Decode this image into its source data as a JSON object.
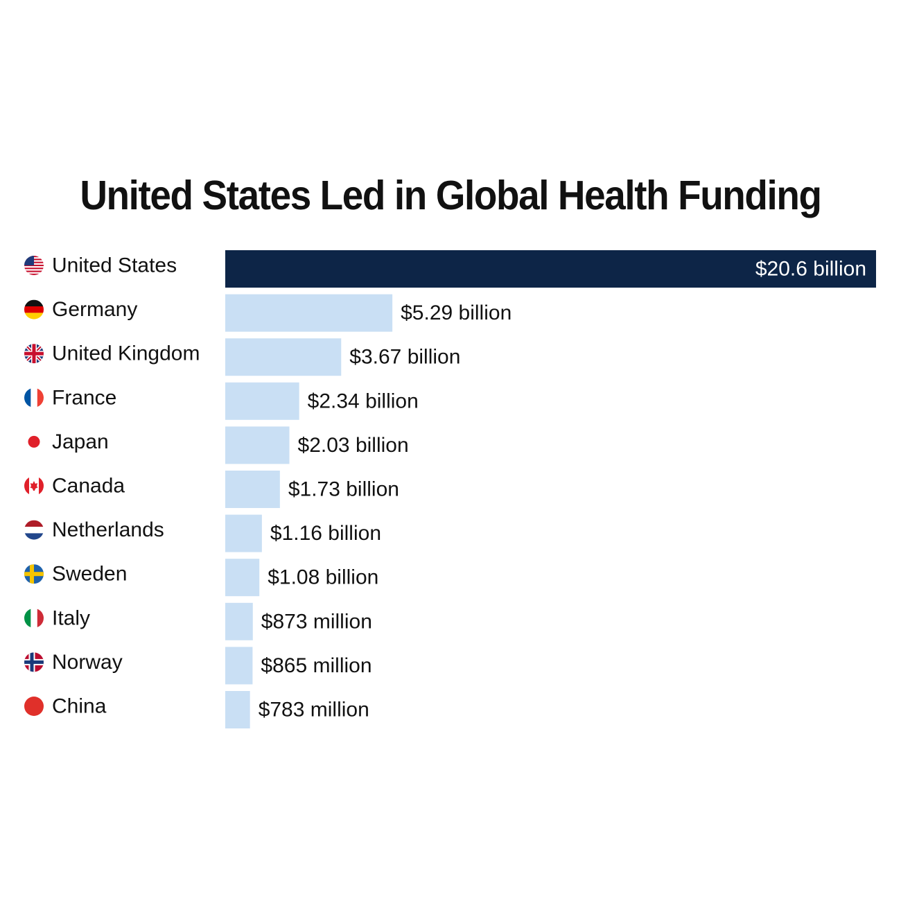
{
  "chart_data": {
    "type": "bar",
    "orientation": "horizontal",
    "title": "United States Led in Global Health Funding",
    "categories": [
      "United States",
      "Germany",
      "United Kingdom",
      "France",
      "Japan",
      "Canada",
      "Netherlands",
      "Sweden",
      "Italy",
      "Norway",
      "China"
    ],
    "values_usd_billions": [
      20.6,
      5.29,
      3.67,
      2.34,
      2.03,
      1.73,
      1.16,
      1.08,
      0.873,
      0.865,
      0.783
    ],
    "value_labels": [
      "$20.6 billion",
      "$5.29 billion",
      "$3.67 billion",
      "$2.34 billion",
      "$2.03 billion",
      "$1.73 billion",
      "$1.16 billion",
      "$1.08 billion",
      "$873 million",
      "$865 million",
      "$783 million"
    ],
    "flag_icons": [
      "us-flag-icon",
      "germany-flag-icon",
      "uk-flag-icon",
      "france-flag-icon",
      "japan-flag-icon",
      "canada-flag-icon",
      "netherlands-flag-icon",
      "sweden-flag-icon",
      "italy-flag-icon",
      "norway-flag-icon",
      "china-flag-icon"
    ],
    "highlight_index": 0,
    "colors": {
      "highlight_bar": "#0d2547",
      "bar": "#c9dff4",
      "label_inside": "#ffffff",
      "text": "#111111"
    },
    "xlim": [
      0,
      20.6
    ],
    "grid": false,
    "legend": "none"
  }
}
